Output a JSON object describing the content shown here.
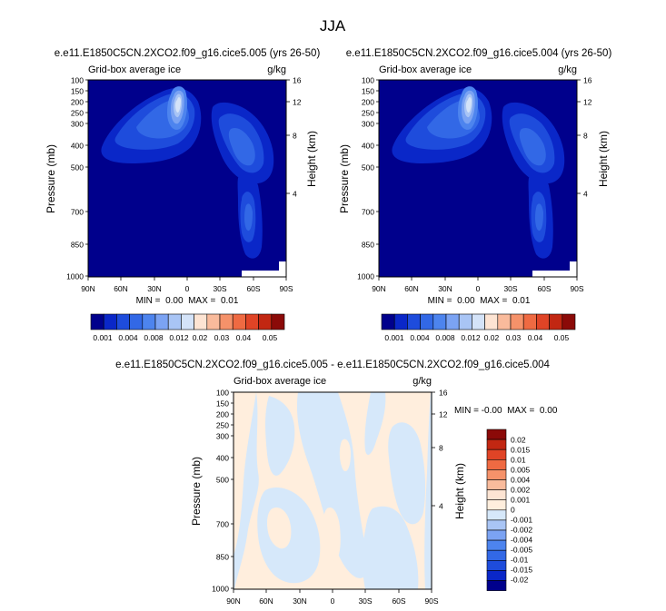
{
  "title": "JJA",
  "colors": {
    "background": "#00008c",
    "frame": "#000000",
    "diff_warm": "#ffeedd",
    "diff_cool": "#d6e8fa"
  },
  "chart_data": [
    {
      "type": "contour",
      "title": "e.e11.E1850C5CN.2XCO2.f09_g16.cice5.005 (yrs 26-50)",
      "left_label": "Grid-box average ice",
      "units": "g/kg",
      "ylabel": "Pressure (mb)",
      "ylabel_right": "Height (km)",
      "x_ticks": [
        "90N",
        "60N",
        "30N",
        "0",
        "30S",
        "60S",
        "90S"
      ],
      "x_range": [
        90,
        -90
      ],
      "y_ticks": [
        "100",
        "150",
        "200",
        "250",
        "300",
        "400",
        "500",
        "700",
        "850",
        "1000"
      ],
      "y_range": [
        100,
        1000
      ],
      "height_ticks": [
        "16",
        "12",
        "8",
        "4"
      ],
      "min_max": "MIN =  0.00  MAX =  0.01",
      "colorbar_labels": [
        "0.001",
        "0.004",
        "0.008",
        "0.012",
        "0.02",
        "0.03",
        "0.04",
        "0.05"
      ],
      "colorbar_colors": [
        "#00008c",
        "#0a27c8",
        "#1e4cdc",
        "#3268e6",
        "#4d84ee",
        "#7ba3f3",
        "#a9c5f5",
        "#d4e3f8",
        "#fde4d3",
        "#f9bb9c",
        "#f5926a",
        "#ef6a42",
        "#e04426",
        "#c22712",
        "#8b0a08"
      ],
      "features": [
        {
          "name": "peak near 10N 225mb",
          "lat": 10,
          "p": 230,
          "level": 8
        },
        {
          "name": "northern hemisphere upper band",
          "lat_range": [
            75,
            -10
          ],
          "p_range": [
            120,
            480
          ],
          "level": 3
        },
        {
          "name": "southern hemisphere upper band",
          "lat_range": [
            -22,
            -78
          ],
          "p_range": [
            180,
            600
          ],
          "level": 3
        },
        {
          "name": "southern low-level lobe",
          "lat_range": [
            -52,
            -70
          ],
          "p_range": [
            560,
            960
          ],
          "level": 3
        }
      ]
    },
    {
      "type": "contour",
      "title": "e.e11.E1850C5CN.2XCO2.f09_g16.cice5.004 (yrs 26-50)",
      "left_label": "Grid-box average ice",
      "units": "g/kg",
      "ylabel": "Pressure (mb)",
      "ylabel_right": "Height (km)",
      "x_ticks": [
        "90N",
        "60N",
        "30N",
        "0",
        "30S",
        "60S",
        "90S"
      ],
      "x_range": [
        90,
        -90
      ],
      "y_ticks": [
        "100",
        "150",
        "200",
        "250",
        "300",
        "400",
        "500",
        "700",
        "850",
        "1000"
      ],
      "y_range": [
        100,
        1000
      ],
      "height_ticks": [
        "16",
        "12",
        "8",
        "4"
      ],
      "min_max": "MIN =  0.00  MAX =  0.01",
      "colorbar_labels": [
        "0.001",
        "0.004",
        "0.008",
        "0.012",
        "0.02",
        "0.03",
        "0.04",
        "0.05"
      ],
      "colorbar_colors": [
        "#00008c",
        "#0a27c8",
        "#1e4cdc",
        "#3268e6",
        "#4d84ee",
        "#7ba3f3",
        "#a9c5f5",
        "#d4e3f8",
        "#fde4d3",
        "#f9bb9c",
        "#f5926a",
        "#ef6a42",
        "#e04426",
        "#c22712",
        "#8b0a08"
      ],
      "features": [
        {
          "name": "peak near 10N 225mb",
          "lat": 10,
          "p": 230,
          "level": 8
        },
        {
          "name": "northern hemisphere upper band",
          "lat_range": [
            75,
            -10
          ],
          "p_range": [
            120,
            480
          ],
          "level": 3
        },
        {
          "name": "southern hemisphere upper band",
          "lat_range": [
            -22,
            -78
          ],
          "p_range": [
            180,
            600
          ],
          "level": 3
        },
        {
          "name": "southern low-level lobe",
          "lat_range": [
            -52,
            -70
          ],
          "p_range": [
            560,
            960
          ],
          "level": 3
        }
      ]
    },
    {
      "type": "contour",
      "title": "e.e11.E1850C5CN.2XCO2.f09_g16.cice5.005 - e.e11.E1850C5CN.2XCO2.f09_g16.cice5.004",
      "left_label": "Grid-box average ice",
      "units": "g/kg",
      "ylabel": "Pressure (mb)",
      "ylabel_right": "Height (km)",
      "x_ticks": [
        "90N",
        "60N",
        "30N",
        "0",
        "30S",
        "60S",
        "90S"
      ],
      "x_range": [
        90,
        -90
      ],
      "y_ticks": [
        "100",
        "150",
        "200",
        "250",
        "300",
        "400",
        "500",
        "700",
        "850",
        "1000"
      ],
      "y_range": [
        100,
        1000
      ],
      "height_ticks": [
        "16",
        "12",
        "8",
        "4"
      ],
      "min_max": "MIN = -0.00  MAX =  0.00",
      "colorbar_labels": [
        "0.02",
        "0.015",
        "0.01",
        "0.005",
        "0.004",
        "0.002",
        "0.001",
        "0",
        "-0.001",
        "-0.002",
        "-0.004",
        "-0.005",
        "-0.01",
        "-0.015",
        "-0.02"
      ],
      "colorbar_colors": [
        "#8b0a08",
        "#c22712",
        "#e04426",
        "#ef6a42",
        "#f5926a",
        "#f9bb9c",
        "#fde4d3",
        "#ffeedd",
        "#d6e8fa",
        "#a9c5f5",
        "#7ba3f3",
        "#4d84ee",
        "#3268e6",
        "#1e4cdc",
        "#0a27c8",
        "#00008c"
      ],
      "features": [
        {
          "name": "mostly near-zero differences, alternating slight positive/negative",
          "level": 0
        }
      ]
    }
  ]
}
